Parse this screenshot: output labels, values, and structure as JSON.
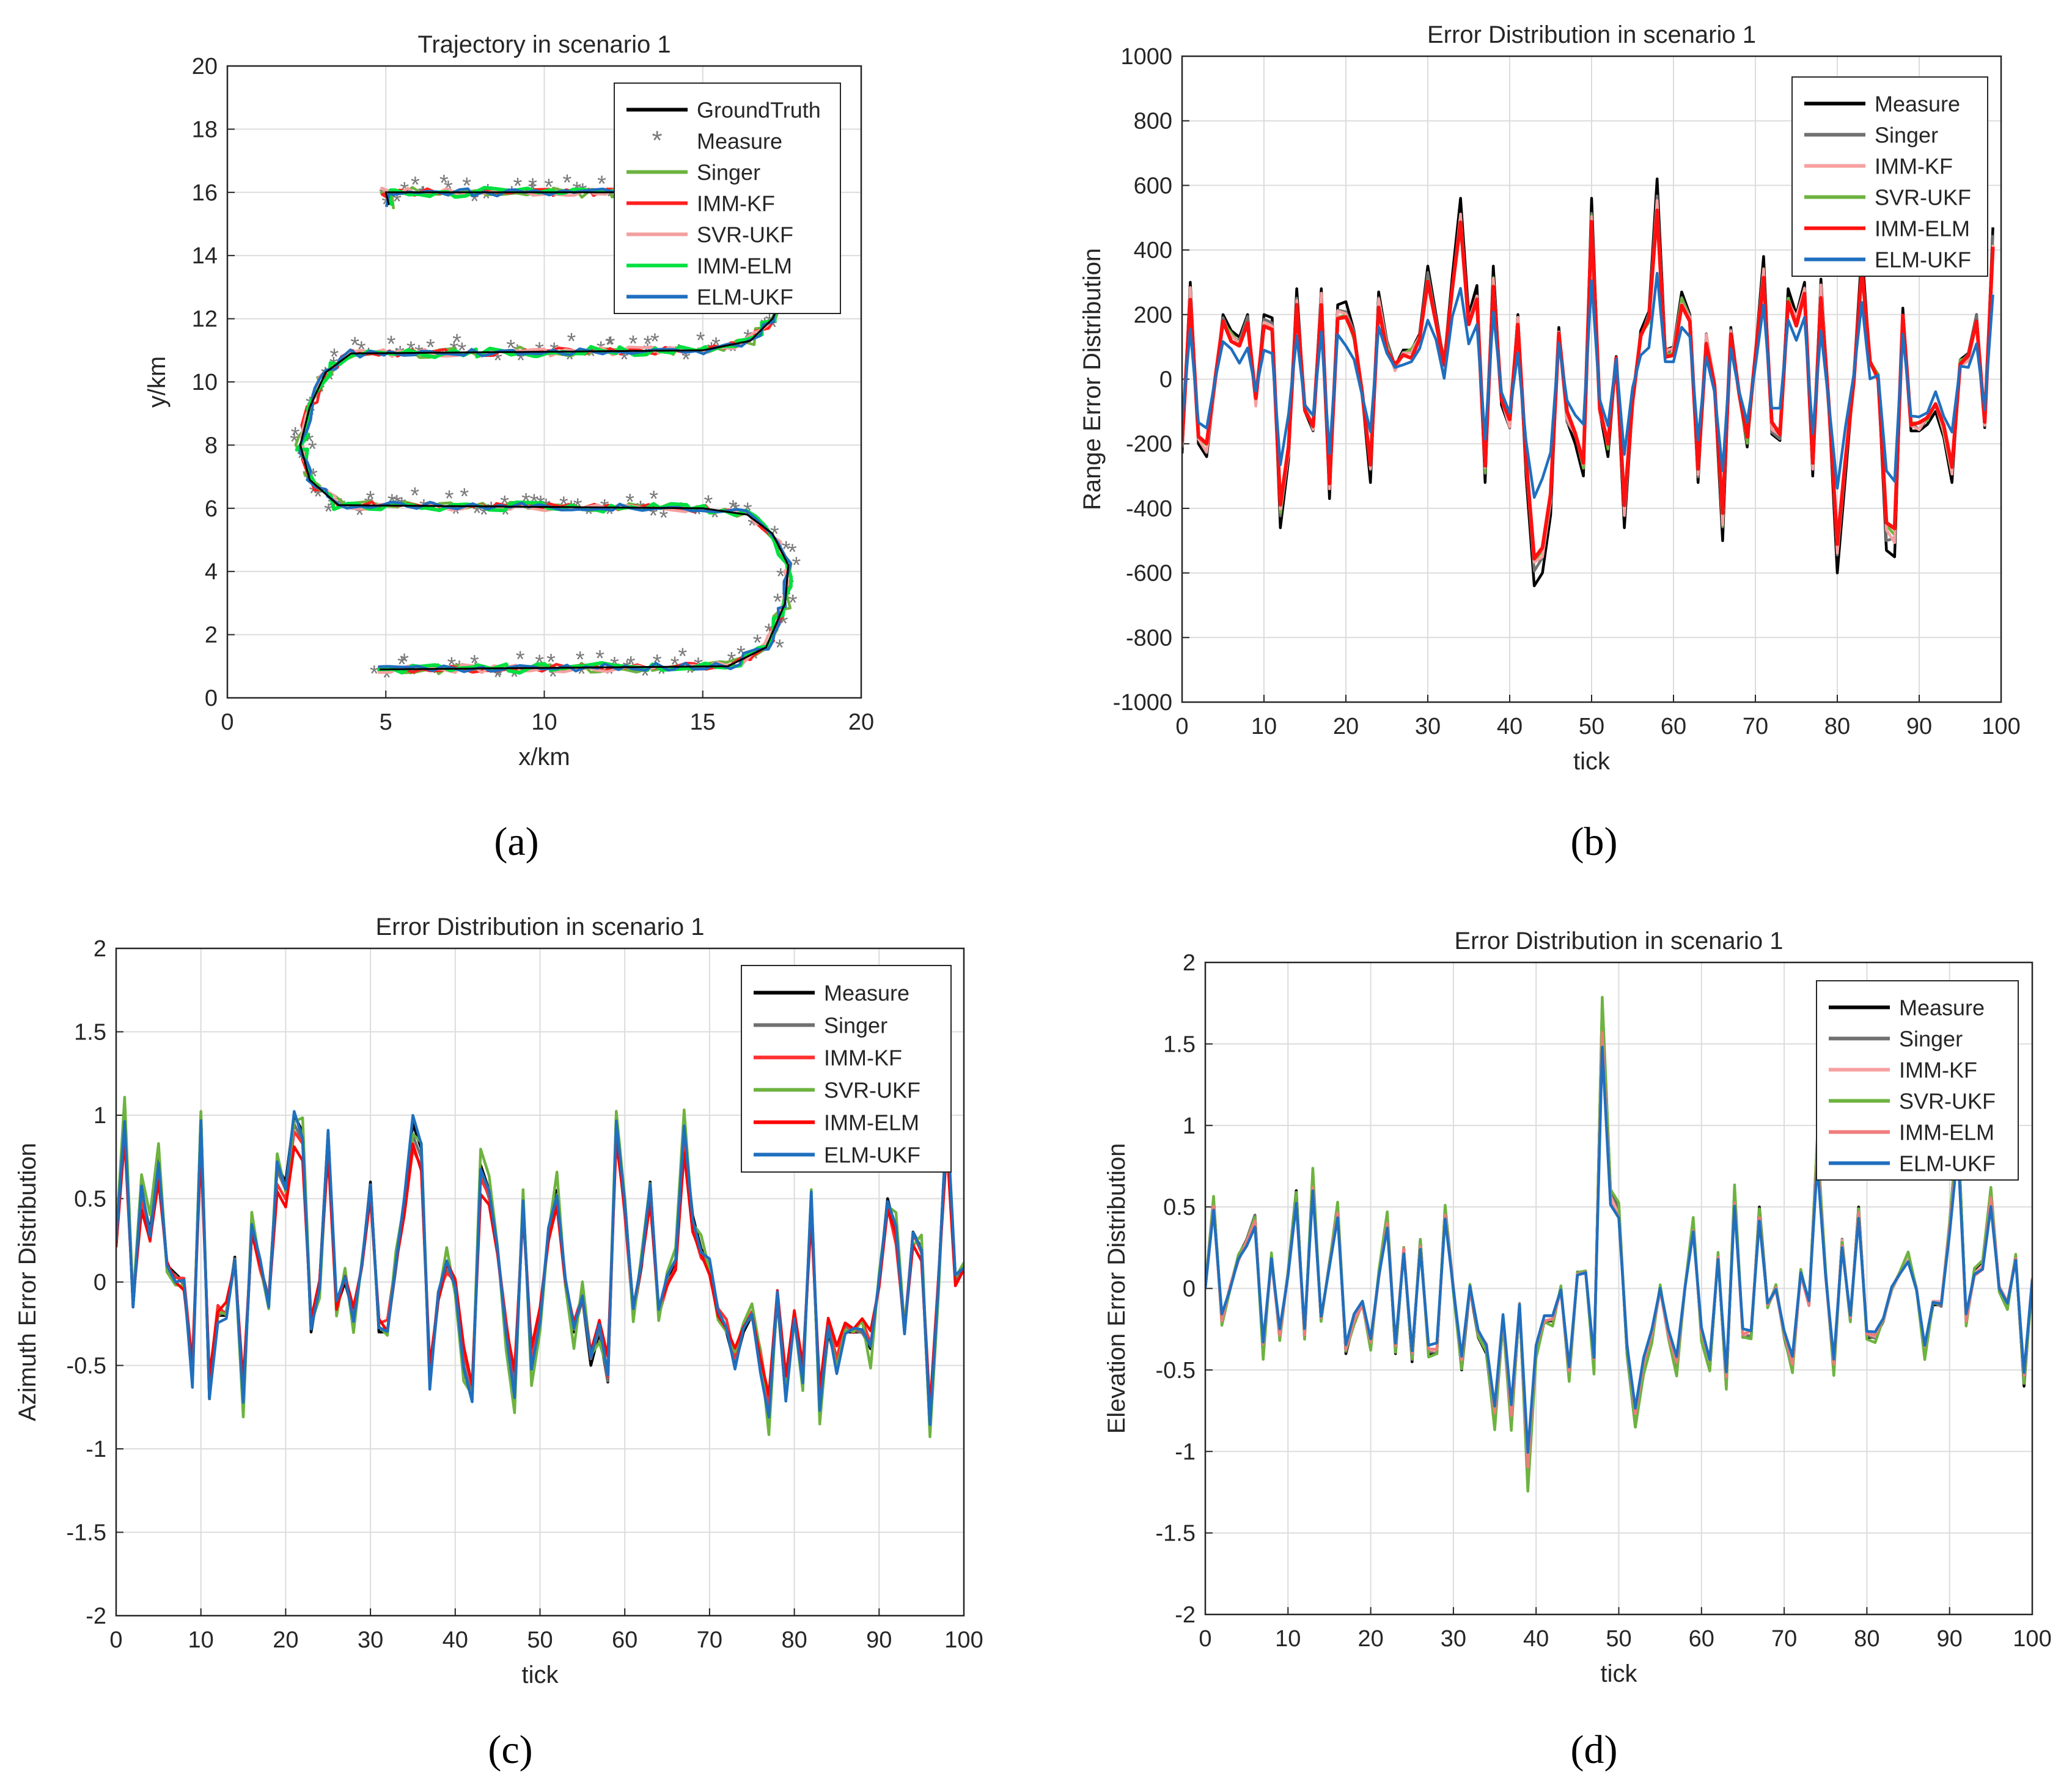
{
  "chart_data": [
    {
      "id": "a",
      "type": "line",
      "title": "Trajectory in scenario 1",
      "xlabel": "x/km",
      "ylabel": "y/km",
      "xlim": [
        0,
        20
      ],
      "ylim": [
        0,
        20
      ],
      "xticks": [
        0,
        5,
        10,
        15,
        20
      ],
      "yticks": [
        0,
        2,
        4,
        6,
        8,
        10,
        12,
        14,
        16,
        18,
        20
      ],
      "grid": true,
      "legend_position": "top-right",
      "legend": [
        "GroundTruth",
        "Measure",
        "Singer",
        "IMM-KF",
        "SVR-UKF",
        "IMM-ELM",
        "ELM-UKF"
      ],
      "path": [
        [
          4.8,
          0.9
        ],
        [
          15.8,
          1.0
        ],
        [
          17.0,
          1.6
        ],
        [
          17.6,
          3.0
        ],
        [
          17.7,
          4.2
        ],
        [
          17.2,
          5.2
        ],
        [
          16.4,
          5.8
        ],
        [
          15.0,
          6.0
        ],
        [
          3.5,
          6.1
        ],
        [
          2.6,
          6.9
        ],
        [
          2.3,
          8.0
        ],
        [
          2.6,
          9.2
        ],
        [
          3.1,
          10.3
        ],
        [
          3.9,
          10.9
        ],
        [
          15.0,
          11.0
        ],
        [
          16.5,
          11.3
        ],
        [
          17.2,
          12.0
        ],
        [
          17.6,
          12.8
        ],
        [
          17.2,
          15.0
        ],
        [
          16.0,
          15.7
        ],
        [
          14.5,
          16.0
        ],
        [
          5.0,
          16.0
        ],
        [
          5.1,
          15.6
        ]
      ],
      "noise": {
        "Measure": 0.32,
        "Singer": 0.16,
        "IMM-KF": 0.12,
        "SVR-UKF": 0.14,
        "IMM-ELM": 0.15,
        "ELM-UKF": 0.12
      }
    },
    {
      "id": "b",
      "type": "line",
      "title": "Error Distribution in scenario 1",
      "xlabel": "tick",
      "ylabel": "Range Error Distribution",
      "xlim": [
        0,
        100
      ],
      "ylim": [
        -1000,
        1000
      ],
      "xticks": [
        0,
        10,
        20,
        30,
        40,
        50,
        60,
        70,
        80,
        90,
        100
      ],
      "yticks": [
        -1000,
        -800,
        -600,
        -400,
        -200,
        0,
        200,
        400,
        600,
        800,
        1000
      ],
      "grid": true,
      "legend_position": "top-right",
      "legend": [
        "Measure",
        "Singer",
        "IMM-KF",
        "SVR-UKF",
        "IMM-ELM",
        "ELM-UKF"
      ],
      "base": [
        -230,
        300,
        -200,
        -240,
        -20,
        200,
        150,
        130,
        200,
        -80,
        200,
        190,
        -460,
        -250,
        280,
        -100,
        -160,
        280,
        -370,
        230,
        240,
        150,
        -50,
        -320,
        270,
        120,
        40,
        90,
        90,
        140,
        350,
        200,
        50,
        320,
        560,
        200,
        290,
        -320,
        350,
        -80,
        -150,
        200,
        -300,
        -640,
        -600,
        -420,
        160,
        -130,
        -200,
        -300,
        560,
        -100,
        -240,
        70,
        -460,
        -80,
        150,
        210,
        620,
        90,
        100,
        270,
        200,
        -320,
        140,
        -20,
        -500,
        160,
        -40,
        -210,
        80,
        380,
        -170,
        -190,
        280,
        200,
        300,
        -300,
        310,
        -100,
        -600,
        -300,
        0,
        400,
        50,
        0,
        -530,
        -550,
        220,
        -160,
        -160,
        -140,
        -100,
        -180,
        -320,
        60,
        80,
        200,
        -150,
        470
      ]
    },
    {
      "id": "c",
      "type": "line",
      "title": "Error Distribution in scenario 1",
      "xlabel": "tick",
      "ylabel": "Azimuth Error Distribution",
      "xlim": [
        0,
        100
      ],
      "ylim": [
        -2,
        2
      ],
      "xticks": [
        0,
        10,
        20,
        30,
        40,
        50,
        60,
        70,
        80,
        90,
        100
      ],
      "yticks": [
        -2,
        -1.5,
        -1,
        -0.5,
        0,
        0.5,
        1,
        1.5,
        2
      ],
      "ytick_labels": [
        "-2",
        "-1.5",
        "-1",
        "-0.5",
        "0",
        "0.5",
        "1",
        "1.5",
        "2"
      ],
      "grid": true,
      "legend_position": "top-right",
      "legend": [
        "Measure",
        "Singer",
        "IMM-KF",
        "SVR-UKF",
        "IMM-ELM",
        "ELM-UKF"
      ],
      "base": [
        0.25,
        1.0,
        -0.15,
        0.55,
        0.3,
        0.75,
        0.1,
        0.05,
        0.0,
        -0.6,
        1.0,
        -0.7,
        -0.2,
        -0.2,
        0.15,
        -0.7,
        0.3,
        0.1,
        -0.1,
        0.7,
        0.6,
        1.0,
        0.9,
        -0.3,
        0.0,
        0.9,
        -0.15,
        0.0,
        -0.2,
        0.1,
        0.6,
        -0.3,
        -0.3,
        0.1,
        0.5,
        0.95,
        0.8,
        -0.6,
        -0.1,
        0.1,
        0.0,
        -0.5,
        -0.7,
        0.7,
        0.55,
        0.2,
        -0.3,
        -0.7,
        0.5,
        -0.5,
        -0.2,
        0.3,
        0.55,
        0.0,
        -0.3,
        -0.1,
        -0.5,
        -0.3,
        -0.6,
        1.0,
        0.5,
        -0.2,
        0.1,
        0.6,
        -0.2,
        0.0,
        0.1,
        0.9,
        0.4,
        0.2,
        0.1,
        -0.2,
        -0.3,
        -0.5,
        -0.3,
        -0.2,
        -0.5,
        -0.8,
        -0.1,
        -0.7,
        -0.2,
        -0.6,
        0.5,
        -0.8,
        -0.3,
        -0.5,
        -0.3,
        -0.3,
        -0.3,
        -0.4,
        0.0,
        0.5,
        0.3,
        -0.3,
        0.3,
        0.2,
        -0.9,
        0.0,
        1.0,
        0.0,
        0.1
      ]
    },
    {
      "id": "d",
      "type": "line",
      "title": "Error Distribution in scenario 1",
      "xlabel": "tick",
      "ylabel": "Elevation Error Distribution",
      "xlim": [
        0,
        100
      ],
      "ylim": [
        -2,
        2
      ],
      "xticks": [
        0,
        10,
        20,
        30,
        40,
        50,
        60,
        70,
        80,
        90,
        100
      ],
      "yticks": [
        -2,
        -1.5,
        -1,
        -0.5,
        0,
        0.5,
        1,
        1.5,
        2
      ],
      "ytick_labels": [
        "-2",
        "-1.5",
        "-1",
        "-0.5",
        "0",
        "0.5",
        "1",
        "1.5",
        "2"
      ],
      "grid": true,
      "legend_position": "top-right",
      "legend": [
        "Measure",
        "Singer",
        "IMM-KF",
        "SVR-UKF",
        "IMM-ELM",
        "ELM-UKF"
      ],
      "base": [
        0.0,
        0.55,
        -0.2,
        0.0,
        0.2,
        0.3,
        0.45,
        -0.4,
        0.2,
        -0.3,
        0.1,
        0.6,
        -0.3,
        0.7,
        -0.2,
        0.15,
        0.5,
        -0.4,
        -0.2,
        -0.1,
        -0.35,
        0.1,
        0.45,
        -0.4,
        0.25,
        -0.45,
        0.3,
        -0.4,
        -0.4,
        0.5,
        0.0,
        -0.5,
        0.0,
        -0.3,
        -0.4,
        -0.85,
        -0.2,
        -0.85,
        -0.1,
        -1.2,
        -0.4,
        -0.2,
        -0.2,
        0.0,
        -0.55,
        0.1,
        0.1,
        -0.5,
        1.75,
        0.6,
        0.5,
        -0.4,
        -0.85,
        -0.5,
        -0.3,
        0.0,
        -0.3,
        -0.5,
        0.0,
        0.4,
        -0.3,
        -0.5,
        0.2,
        -0.6,
        0.6,
        -0.3,
        -0.3,
        0.5,
        -0.1,
        0.0,
        -0.3,
        -0.5,
        0.1,
        -0.1,
        0.9,
        0.1,
        -0.5,
        0.3,
        -0.2,
        0.5,
        -0.3,
        -0.3,
        -0.2,
        0.0,
        0.1,
        0.2,
        0.0,
        -0.4,
        -0.1,
        -0.1,
        0.4,
        1.0,
        -0.2,
        0.1,
        0.15,
        0.6,
        0.0,
        -0.1,
        0.2,
        -0.6,
        0.05
      ]
    }
  ],
  "series_colors": {
    "GroundTruth": "#000000",
    "Measure": "#000000",
    "Singer": "#707070",
    "IMM-KF": "#ff3030",
    "SVR-UKF": "#6db33f",
    "IMM-ELM": "#ff0000",
    "ELM-UKF": "#1f6fbf"
  },
  "series_colors_trajectory": {
    "GroundTruth": "#000000",
    "Measure": "#7a7a7a",
    "Singer": "#6db33f",
    "IMM-KF": "#ff2020",
    "SVR-UKF": "#f4a0a0",
    "IMM-ELM": "#00e040",
    "ELM-UKF": "#1f6fbf"
  },
  "series_colors_elevation": {
    "Measure": "#000000",
    "Singer": "#707070",
    "IMM-KF": "#f7a0a0",
    "SVR-UKF": "#6db33f",
    "IMM-ELM": "#f07c7c",
    "ELM-UKF": "#1f6fbf"
  },
  "series_colors_range": {
    "Measure": "#000000",
    "Singer": "#707070",
    "IMM-KF": "#f7a0a0",
    "SVR-UKF": "#6db33f",
    "IMM-ELM": "#ff1010",
    "ELM-UKF": "#1f6fbf"
  },
  "captions": [
    "(a)",
    "(b)",
    "(c)",
    "(d)"
  ]
}
